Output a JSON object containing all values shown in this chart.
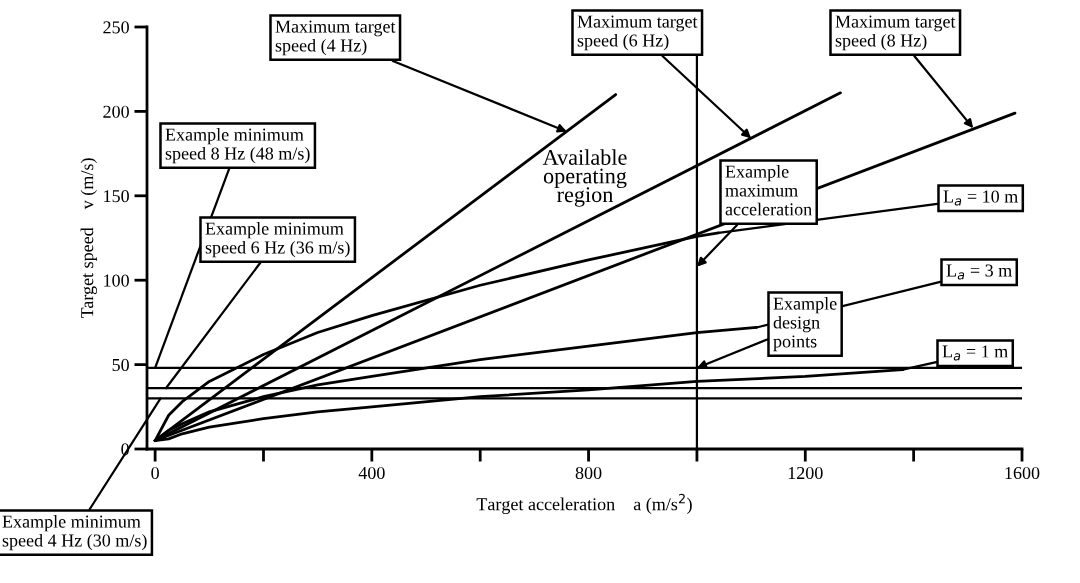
{
  "chart_data": {
    "type": "line",
    "xlabel": "Target acceleration    a (m/s$^{2}$)",
    "ylabel": "Target speed    v (m/s)",
    "xlim": [
      -15,
      1600
    ],
    "ylim": [
      0,
      250
    ],
    "xticks": [
      0,
      {
        "value": 200,
        "label": null
      },
      400,
      {
        "value": 600,
        "label": null
      },
      800,
      {
        "value": 1000,
        "label": null
      },
      1200,
      {
        "value": 1400,
        "label": null
      },
      1600
    ],
    "yticks": [
      0,
      50,
      100,
      150,
      200,
      250
    ],
    "grid": false,
    "legend": false,
    "marker": "none",
    "line_style": "solid",
    "series": [
      {
        "color": "#000000",
        "x": [
          0,
          850
        ],
        "values": [
          5,
          210
        ]
      },
      {
        "color": "#000000",
        "x": [
          0,
          1265
        ],
        "values": [
          5,
          211
        ]
      },
      {
        "color": "#000000",
        "x": [
          0,
          1587
        ],
        "values": [
          5,
          199
        ]
      },
      {
        "color": "#000000",
        "x": [
          0,
          25,
          50,
          100,
          200,
          300,
          400,
          600,
          800,
          1000,
          1040
        ],
        "values": [
          5,
          20,
          28,
          40,
          56,
          69,
          79,
          97,
          112,
          126,
          128
        ]
      },
      {
        "color": "#000000",
        "x": [
          0,
          25,
          50,
          100,
          200,
          300,
          400,
          600,
          800,
          1000,
          1110
        ],
        "values": [
          5,
          11,
          15,
          22,
          31,
          38,
          43,
          53,
          61,
          69,
          72
        ]
      },
      {
        "color": "#000000",
        "x": [
          0,
          25,
          50,
          100,
          200,
          300,
          400,
          600,
          800,
          1000,
          1200,
          1380
        ],
        "values": [
          5,
          6,
          9,
          13,
          18,
          22,
          25,
          31,
          35,
          40,
          43,
          47
        ]
      }
    ],
    "ref_lines": [
      {
        "axis": "y",
        "value": 48,
        "color": "#000000"
      },
      {
        "axis": "y",
        "value": 36,
        "color": "#000000"
      },
      {
        "axis": "y",
        "value": 30,
        "color": "#000000"
      },
      {
        "axis": "x",
        "value": 1000,
        "color": "#000000"
      }
    ],
    "annotations": [
      {
        "text": "Maximum target\nspeed (4 Hz)",
        "x": 760,
        "y": 188
      },
      {
        "text": "Maximum target\nspeed (6 Hz)",
        "x": 1100,
        "y": 184
      },
      {
        "text": "Maximum target\nspeed (8 Hz)",
        "x": 1510,
        "y": 190
      },
      {
        "text": "Example minimum\nspeed 8 Hz (48 m/s)",
        "x": 0,
        "y": 48
      },
      {
        "text": "Example minimum\nspeed 6 Hz (36 m/s)",
        "x": 20,
        "y": 36
      },
      {
        "text": "Example minimum\nspeed 4 Hz (30 m/s)",
        "x": 10,
        "y": 30
      },
      "Available\noperating\nregion",
      {
        "text": "Example\nmaximum\nacceleration",
        "x": 1000,
        "y": 108
      },
      {
        "text": "L$_{a}$ = 10 m",
        "x": 1040,
        "y": 128
      },
      {
        "text": "L$_{a}$ = 3 m",
        "x": 1110,
        "y": 72
      },
      {
        "text": "L$_{a}$ = 1 m",
        "x": 1380,
        "y": 47
      },
      {
        "text": "Example\ndesign\npoints",
        "x": 1000,
        "y": 48
      }
    ]
  }
}
